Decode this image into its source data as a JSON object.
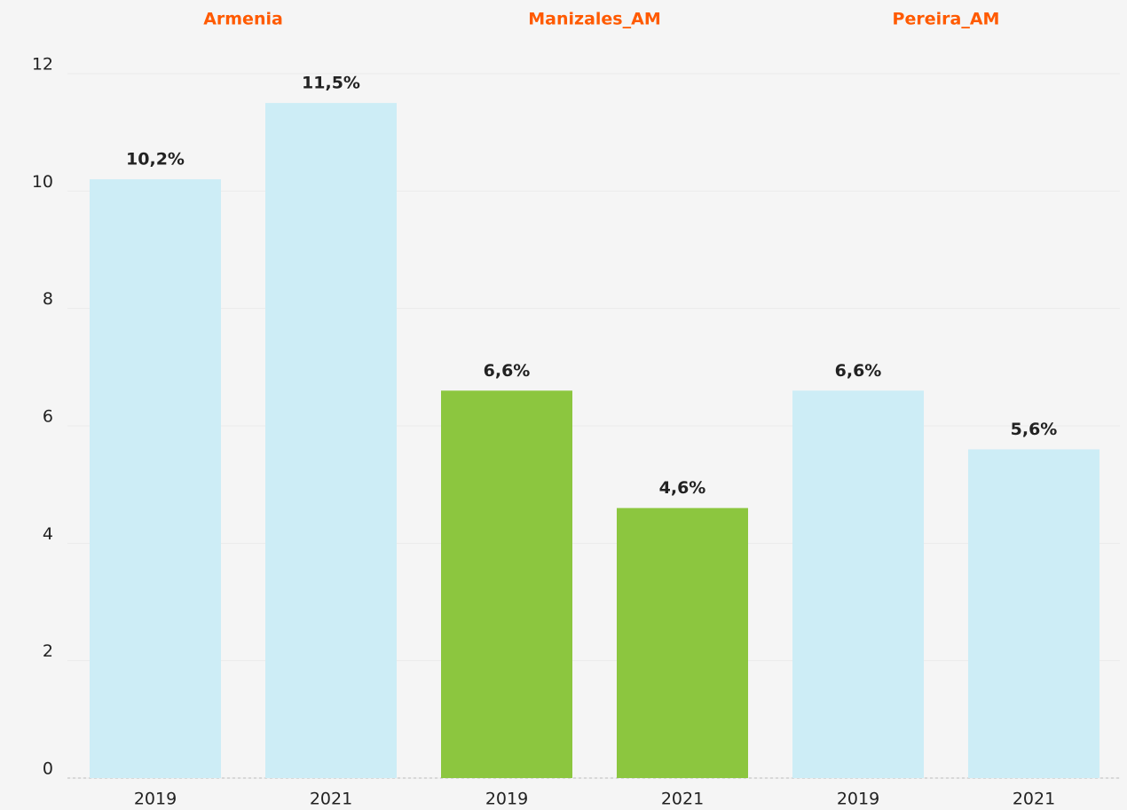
{
  "chart_data": {
    "type": "bar",
    "groups": [
      "Armenia",
      "Manizales_AM",
      "Pereira_AM"
    ],
    "categories": [
      "2019",
      "2021",
      "2019",
      "2021",
      "2019",
      "2021"
    ],
    "values": [
      10.2,
      11.5,
      6.6,
      4.6,
      6.6,
      5.6
    ],
    "value_labels": [
      "10,2%",
      "11,5%",
      "6,6%",
      "4,6%",
      "6,6%",
      "5,6%"
    ],
    "colors": [
      "#cdedf6",
      "#cdedf6",
      "#8cc63f",
      "#8cc63f",
      "#cdedf6",
      "#cdedf6"
    ],
    "group_title_color": "#ff5a00",
    "ylim": [
      0,
      12
    ],
    "yticks": [
      0,
      2,
      4,
      6,
      8,
      10,
      12
    ],
    "grid": true
  }
}
